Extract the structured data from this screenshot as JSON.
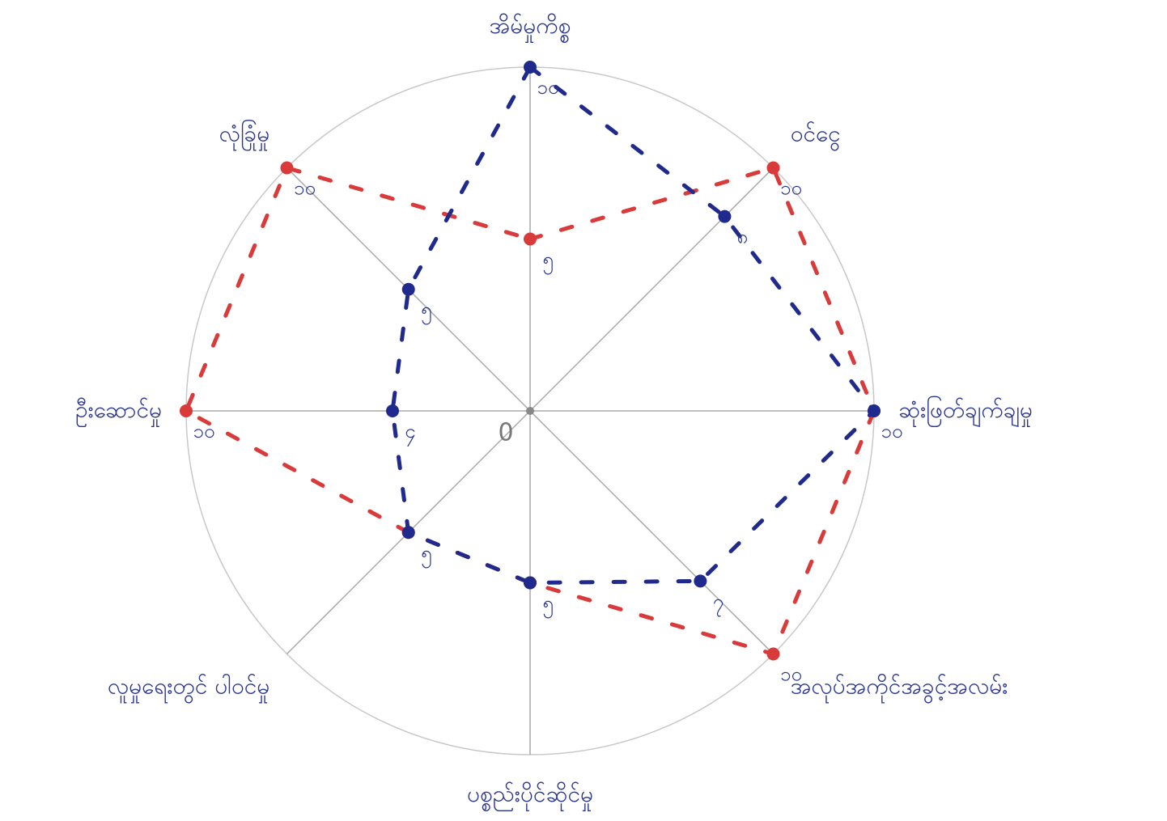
{
  "chart_data": {
    "type": "radar",
    "categories": [
      "အိမ်မှုကိစ္စ",
      "ဝင်ငွေ",
      "ဆုံးဖြတ်ချက်ချမှု",
      "အလုပ်အကိုင်အခွင့်အလမ်း",
      "ပစ္စည်းပိုင်ဆိုင်မှု",
      "လူမှုရေးတွင် ပါဝင်မှု",
      "ဦးဆောင်မှု",
      "လုံခြုံမှု"
    ],
    "series": [
      {
        "color": "#d93a3a",
        "values": [
          5,
          10,
          10,
          10,
          5,
          5,
          10,
          10
        ],
        "value_labels": [
          "၅",
          "၁၀",
          null,
          "၁၀",
          null,
          null,
          "၁၀",
          "၁၀"
        ]
      },
      {
        "color": "#1f2a8c",
        "values": [
          10,
          8,
          10,
          7,
          5,
          5,
          4,
          5
        ],
        "value_labels": [
          "၁၀",
          "၈",
          "၁၀",
          "၇",
          "၅",
          "၅",
          "၄",
          "၅"
        ]
      }
    ],
    "rlim": [
      0,
      10
    ],
    "rticks": [
      0
    ]
  }
}
